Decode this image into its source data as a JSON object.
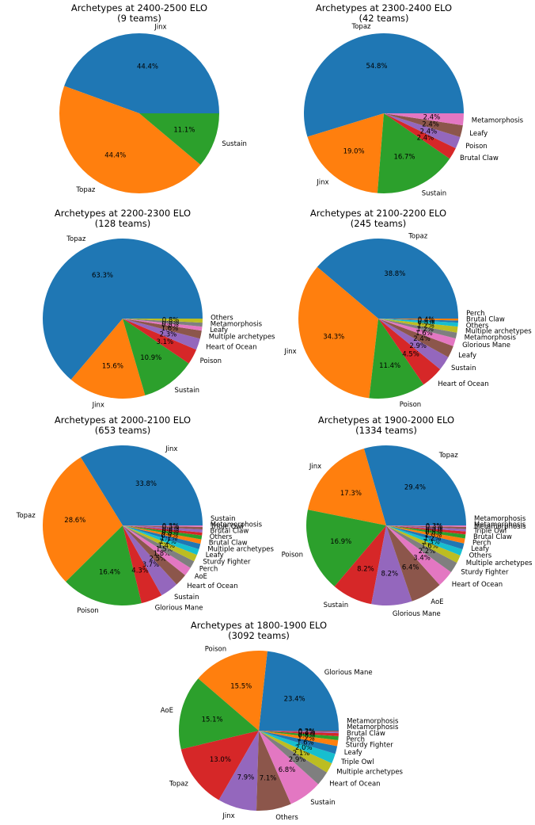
{
  "chart_data": [
    {
      "type": "pie",
      "title": "Archetypes at 2400-2500 ELO",
      "subtitle": "(9 teams)",
      "slices": [
        {
          "label": "Jinx",
          "value": 44.4,
          "pct": "44.4%",
          "color": "#1f77b4"
        },
        {
          "label": "Topaz",
          "value": 44.4,
          "pct": "44.4%",
          "color": "#ff7f0e"
        },
        {
          "label": "Sustain",
          "value": 11.1,
          "pct": "11.1%",
          "color": "#2ca02c"
        }
      ]
    },
    {
      "type": "pie",
      "title": "Archetypes at 2300-2400 ELO",
      "subtitle": "(42 teams)",
      "slices": [
        {
          "label": "Topaz",
          "value": 54.8,
          "pct": "54.8%",
          "color": "#1f77b4"
        },
        {
          "label": "Jinx",
          "value": 19.0,
          "pct": "19.0%",
          "color": "#ff7f0e"
        },
        {
          "label": "Sustain",
          "value": 16.7,
          "pct": "16.7%",
          "color": "#2ca02c"
        },
        {
          "label": "Brutal Claw",
          "value": 2.4,
          "pct": "2.4%",
          "color": "#d62728"
        },
        {
          "label": "Poison",
          "value": 2.4,
          "pct": "2.4%",
          "color": "#9467bd"
        },
        {
          "label": "Leafy",
          "value": 2.4,
          "pct": "2.4%",
          "color": "#8c564b"
        },
        {
          "label": "Metamorphosis",
          "value": 2.4,
          "pct": "2.4%",
          "color": "#e377c2"
        }
      ]
    },
    {
      "type": "pie",
      "title": "Archetypes at 2200-2300 ELO",
      "subtitle": "(128 teams)",
      "slices": [
        {
          "label": "Topaz",
          "value": 63.3,
          "pct": "63.3%",
          "color": "#1f77b4"
        },
        {
          "label": "Jinx",
          "value": 15.6,
          "pct": "15.6%",
          "color": "#ff7f0e"
        },
        {
          "label": "Sustain",
          "value": 10.9,
          "pct": "10.9%",
          "color": "#2ca02c"
        },
        {
          "label": "Poison",
          "value": 3.1,
          "pct": "3.1%",
          "color": "#d62728"
        },
        {
          "label": "Heart of Ocean",
          "value": 2.3,
          "pct": "2.3%",
          "color": "#9467bd"
        },
        {
          "label": "Multiple archetypes",
          "value": 1.6,
          "pct": "1.6%",
          "color": "#8c564b"
        },
        {
          "label": "Leafy",
          "value": 0.8,
          "pct": "0.8%",
          "color": "#e377c2"
        },
        {
          "label": "Metamorphosis",
          "value": 0.8,
          "pct": "0.8%",
          "color": "#7f7f7f"
        },
        {
          "label": "Others",
          "value": 0.8,
          "pct": "0.8%",
          "color": "#bcbd22"
        }
      ]
    },
    {
      "type": "pie",
      "title": "Archetypes at 2100-2200 ELO",
      "subtitle": "(245 teams)",
      "slices": [
        {
          "label": "Topaz",
          "value": 38.8,
          "pct": "38.8%",
          "color": "#1f77b4"
        },
        {
          "label": "Jinx",
          "value": 34.3,
          "pct": "34.3%",
          "color": "#ff7f0e"
        },
        {
          "label": "Poison",
          "value": 11.4,
          "pct": "11.4%",
          "color": "#2ca02c"
        },
        {
          "label": "Heart of Ocean",
          "value": 4.5,
          "pct": "4.5%",
          "color": "#d62728"
        },
        {
          "label": "Sustain",
          "value": 2.9,
          "pct": "2.9%",
          "color": "#9467bd"
        },
        {
          "label": "Leafy",
          "value": 2.4,
          "pct": "2.4%",
          "color": "#8c564b"
        },
        {
          "label": "Glorious Mane",
          "value": 1.6,
          "pct": "1.6%",
          "color": "#e377c2"
        },
        {
          "label": "Metamorphosis",
          "value": 1.2,
          "pct": "1.2%",
          "color": "#7f7f7f"
        },
        {
          "label": "Multiple archetypes",
          "value": 1.2,
          "pct": "1.2%",
          "color": "#bcbd22"
        },
        {
          "label": "Others",
          "value": 0.8,
          "pct": "0.8%",
          "color": "#17becf"
        },
        {
          "label": "Brutal Claw",
          "value": 0.4,
          "pct": "0.4%",
          "color": "#1f77b4"
        },
        {
          "label": "Perch",
          "value": 0.4,
          "pct": "0.4%",
          "color": "#ff7f0e"
        }
      ]
    },
    {
      "type": "pie",
      "title": "Archetypes at 2000-2100 ELO",
      "subtitle": "(653 teams)",
      "slices": [
        {
          "label": "Jinx",
          "value": 33.8,
          "pct": "33.8%",
          "color": "#1f77b4"
        },
        {
          "label": "Topaz",
          "value": 28.6,
          "pct": "28.6%",
          "color": "#ff7f0e"
        },
        {
          "label": "Poison",
          "value": 16.4,
          "pct": "16.4%",
          "color": "#2ca02c"
        },
        {
          "label": "Glorious Mane",
          "value": 4.3,
          "pct": "4.3%",
          "color": "#d62728"
        },
        {
          "label": "Sustain",
          "value": 3.7,
          "pct": "3.7%",
          "color": "#9467bd"
        },
        {
          "label": "Heart of Ocean",
          "value": 2.5,
          "pct": "2.5%",
          "color": "#8c564b"
        },
        {
          "label": "AoE",
          "value": 1.8,
          "pct": "1.8%",
          "color": "#e377c2"
        },
        {
          "label": "Perch",
          "value": 1.5,
          "pct": "1.5%",
          "color": "#7f7f7f"
        },
        {
          "label": "Sturdy Fighter",
          "value": 1.4,
          "pct": "1.4%",
          "color": "#bcbd22"
        },
        {
          "label": "Leafy",
          "value": 1.2,
          "pct": "1.2%",
          "color": "#17becf"
        },
        {
          "label": "Multiple archetypes",
          "value": 1.1,
          "pct": "1.1%",
          "color": "#1f77b4"
        },
        {
          "label": "Brutal Claw",
          "value": 0.9,
          "pct": "0.9%",
          "color": "#ff7f0e"
        },
        {
          "label": "Others",
          "value": 0.8,
          "pct": "0.8%",
          "color": "#2ca02c"
        },
        {
          "label": "Brutal Claw",
          "value": 0.6,
          "pct": "0.6%",
          "color": "#d62728"
        },
        {
          "label": "Metamorphosis",
          "value": 0.6,
          "pct": "0.6%",
          "color": "#9467bd"
        },
        {
          "label": "Sustain",
          "value": 0.5,
          "pct": "0.5%",
          "color": "#8c564b"
        },
        {
          "label": "Triple Owl",
          "value": 0.3,
          "pct": "0.3%",
          "color": "#e377c2"
        }
      ]
    },
    {
      "type": "pie",
      "title": "Archetypes at 1900-2000 ELO",
      "subtitle": "(1334 teams)",
      "slices": [
        {
          "label": "Topaz",
          "value": 29.4,
          "pct": "29.4%",
          "color": "#1f77b4"
        },
        {
          "label": "Jinx",
          "value": 17.3,
          "pct": "17.3%",
          "color": "#ff7f0e"
        },
        {
          "label": "Poison",
          "value": 16.9,
          "pct": "16.9%",
          "color": "#2ca02c"
        },
        {
          "label": "Sustain",
          "value": 8.2,
          "pct": "8.2%",
          "color": "#d62728"
        },
        {
          "label": "Glorious Mane",
          "value": 8.2,
          "pct": "8.2%",
          "color": "#9467bd"
        },
        {
          "label": "AoE",
          "value": 6.4,
          "pct": "6.4%",
          "color": "#8c564b"
        },
        {
          "label": "Heart of Ocean",
          "value": 3.4,
          "pct": "3.4%",
          "color": "#e377c2"
        },
        {
          "label": "Sturdy Fighter",
          "value": 2.2,
          "pct": "2.2%",
          "color": "#7f7f7f"
        },
        {
          "label": "Multiple archetypes",
          "value": 1.6,
          "pct": "1.6%",
          "color": "#bcbd22"
        },
        {
          "label": "Others",
          "value": 1.3,
          "pct": "1.3%",
          "color": "#17becf"
        },
        {
          "label": "Leafy",
          "value": 1.2,
          "pct": "1.2%",
          "color": "#1f77b4"
        },
        {
          "label": "Perch",
          "value": 1.0,
          "pct": "1.0%",
          "color": "#ff7f0e"
        },
        {
          "label": "Brutal Claw",
          "value": 0.8,
          "pct": "0.8%",
          "color": "#2ca02c"
        },
        {
          "label": "Triple Owl",
          "value": 0.6,
          "pct": "0.6%",
          "color": "#d62728"
        },
        {
          "label": "Metamorphosis",
          "value": 0.5,
          "pct": "0.5%",
          "color": "#9467bd"
        },
        {
          "label": "Metamorphosis",
          "value": 0.4,
          "pct": "0.4%",
          "color": "#8c564b"
        },
        {
          "label": "Metamorphosis",
          "value": 0.3,
          "pct": "0.3%",
          "color": "#e377c2"
        }
      ]
    },
    {
      "type": "pie",
      "title": "Archetypes at 1800-1900 ELO",
      "subtitle": "(3092 teams)",
      "slices": [
        {
          "label": "Glorious Mane",
          "value": 23.4,
          "pct": "23.4%",
          "color": "#1f77b4"
        },
        {
          "label": "Poison",
          "value": 15.5,
          "pct": "15.5%",
          "color": "#ff7f0e"
        },
        {
          "label": "AoE",
          "value": 15.1,
          "pct": "15.1%",
          "color": "#2ca02c"
        },
        {
          "label": "Topaz",
          "value": 13.0,
          "pct": "13.0%",
          "color": "#d62728"
        },
        {
          "label": "Jinx",
          "value": 7.9,
          "pct": "7.9%",
          "color": "#9467bd"
        },
        {
          "label": "Others",
          "value": 7.1,
          "pct": "7.1%",
          "color": "#8c564b"
        },
        {
          "label": "Sustain",
          "value": 6.8,
          "pct": "6.8%",
          "color": "#e377c2"
        },
        {
          "label": "Heart of Ocean",
          "value": 2.9,
          "pct": "2.9%",
          "color": "#7f7f7f"
        },
        {
          "label": "Multiple archetypes",
          "value": 2.1,
          "pct": "2.1%",
          "color": "#bcbd22"
        },
        {
          "label": "Triple Owl",
          "value": 2.0,
          "pct": "2.0%",
          "color": "#17becf"
        },
        {
          "label": "Leafy",
          "value": 1.6,
          "pct": "1.6%",
          "color": "#1f77b4"
        },
        {
          "label": "Sturdy Fighter",
          "value": 1.2,
          "pct": "1.2%",
          "color": "#ff7f0e"
        },
        {
          "label": "Perch",
          "value": 0.8,
          "pct": "0.8%",
          "color": "#2ca02c"
        },
        {
          "label": "Brutal Claw",
          "value": 0.6,
          "pct": "0.6%",
          "color": "#d62728"
        },
        {
          "label": "Metamorphosis",
          "value": 0.3,
          "pct": "0.3%",
          "color": "#9467bd"
        },
        {
          "label": "Metamorphosis",
          "value": 0.2,
          "pct": "0.2%",
          "color": "#8c564b"
        }
      ]
    }
  ]
}
